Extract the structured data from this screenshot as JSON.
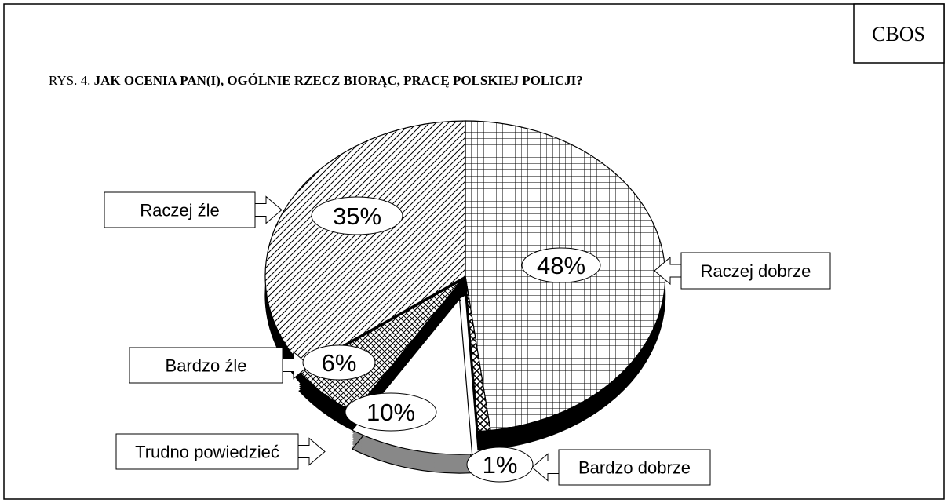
{
  "chart_data": {
    "type": "pie",
    "source": "CBOS",
    "figure_label": "RYS. 4.",
    "title": "JAK OCENIA PAN(I), OGÓLNIE RZECZ BIORĄC, PRACĘ POLSKIEJ POLICJI?",
    "categories": [
      "Raczej dobrze",
      "Bardzo dobrze",
      "Trudno powiedzieć",
      "Bardzo źle",
      "Raczej źle"
    ],
    "values": [
      48,
      1,
      10,
      6,
      35
    ],
    "value_labels": [
      "48%",
      "1%",
      "10%",
      "6%",
      "35%"
    ]
  }
}
